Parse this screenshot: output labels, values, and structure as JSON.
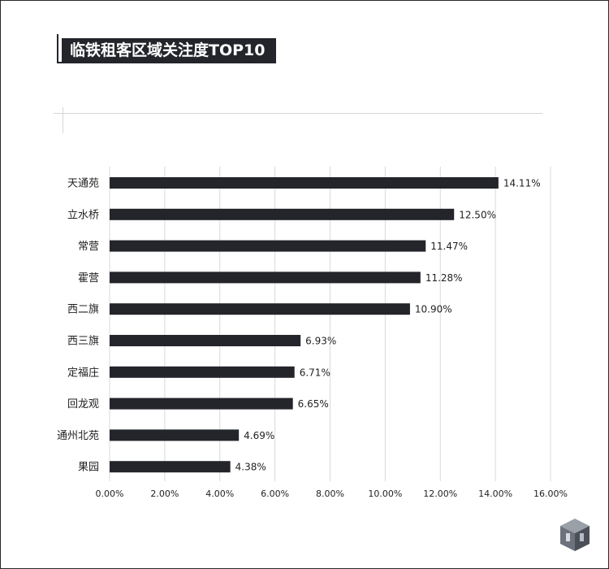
{
  "title": "临铁租客区域关注度TOP10",
  "colors": {
    "bar": "#23252b",
    "grid": "#d9d9d9",
    "title_bg": "#23252b",
    "text": "#222222"
  },
  "icons": [
    "logo-icon"
  ],
  "chart_data": {
    "type": "bar",
    "orientation": "horizontal",
    "title": "临铁租客区域关注度TOP10",
    "categories": [
      "天通苑",
      "立水桥",
      "常营",
      "霍营",
      "西二旗",
      "西三旗",
      "定福庄",
      "回龙观",
      "通州北苑",
      "果园"
    ],
    "values": [
      14.11,
      12.5,
      11.47,
      11.28,
      10.9,
      6.93,
      6.71,
      6.65,
      4.69,
      4.38
    ],
    "value_labels": [
      "14.11%",
      "12.50%",
      "11.47%",
      "11.28%",
      "10.90%",
      "6.93%",
      "6.71%",
      "6.65%",
      "4.69%",
      "4.38%"
    ],
    "x_ticks": [
      "0.00%",
      "2.00%",
      "4.00%",
      "6.00%",
      "8.00%",
      "10.00%",
      "12.00%",
      "14.00%",
      "16.00%"
    ],
    "xlim": [
      0,
      16
    ],
    "xlabel": "",
    "ylabel": "",
    "grid": "vertical",
    "legend": "none"
  }
}
